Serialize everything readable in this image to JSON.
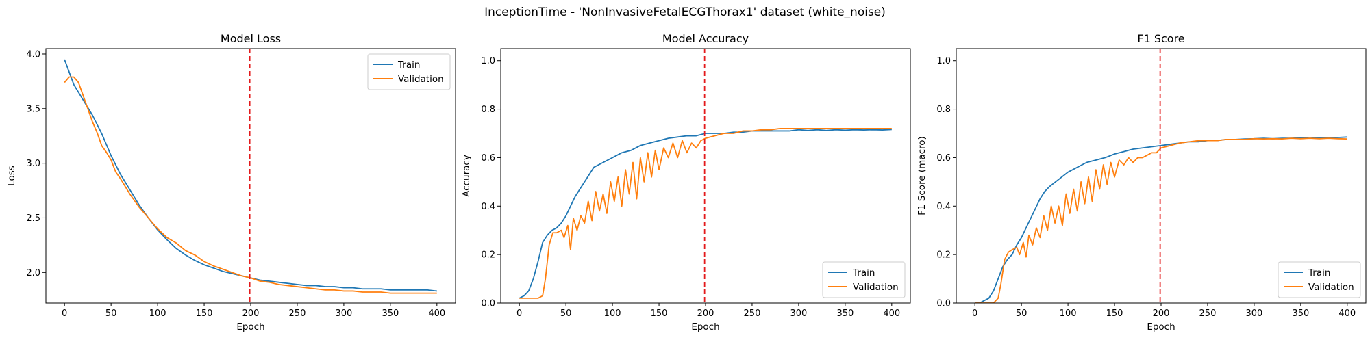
{
  "figure": {
    "title": "InceptionTime - 'NonInvasiveFetalECGThorax1' dataset (white_noise)"
  },
  "colors": {
    "train": "#1f77b4",
    "validation": "#ff7f0e",
    "marker_line": "#e31a1c"
  },
  "chart_data": [
    {
      "type": "line",
      "title": "Model Loss",
      "xlabel": "Epoch",
      "ylabel": "Loss",
      "xlim": [
        -20,
        420
      ],
      "ylim": [
        1.72,
        4.05
      ],
      "xticks": [
        0,
        50,
        100,
        150,
        200,
        250,
        300,
        350,
        400
      ],
      "yticks": [
        2.0,
        2.5,
        3.0,
        3.5,
        4.0
      ],
      "ytick_labels": [
        "2.0",
        "2.5",
        "3.0",
        "3.5",
        "4.0"
      ],
      "legend": "upper right",
      "vline_x": 199,
      "series": [
        {
          "name": "Train",
          "color": "train",
          "x": [
            0,
            10,
            20,
            30,
            40,
            50,
            60,
            70,
            80,
            90,
            100,
            110,
            120,
            130,
            140,
            150,
            160,
            170,
            180,
            190,
            200,
            210,
            220,
            230,
            240,
            250,
            260,
            270,
            280,
            290,
            300,
            310,
            320,
            330,
            340,
            350,
            360,
            370,
            380,
            390,
            400
          ],
          "y": [
            3.95,
            3.72,
            3.58,
            3.44,
            3.27,
            3.07,
            2.9,
            2.76,
            2.62,
            2.5,
            2.39,
            2.3,
            2.22,
            2.16,
            2.11,
            2.07,
            2.04,
            2.01,
            1.99,
            1.97,
            1.95,
            1.93,
            1.92,
            1.91,
            1.9,
            1.89,
            1.88,
            1.88,
            1.87,
            1.87,
            1.86,
            1.86,
            1.85,
            1.85,
            1.85,
            1.84,
            1.84,
            1.84,
            1.84,
            1.84,
            1.83
          ]
        },
        {
          "name": "Validation",
          "color": "validation",
          "x": [
            0,
            5,
            10,
            15,
            20,
            25,
            30,
            35,
            40,
            45,
            50,
            55,
            60,
            70,
            80,
            90,
            100,
            110,
            120,
            130,
            140,
            150,
            160,
            170,
            180,
            190,
            200,
            210,
            220,
            230,
            240,
            250,
            260,
            270,
            280,
            290,
            300,
            310,
            320,
            330,
            340,
            350,
            360,
            370,
            380,
            390,
            400
          ],
          "y": [
            3.74,
            3.79,
            3.79,
            3.74,
            3.62,
            3.5,
            3.38,
            3.28,
            3.16,
            3.1,
            3.03,
            2.92,
            2.86,
            2.72,
            2.6,
            2.5,
            2.4,
            2.32,
            2.27,
            2.2,
            2.16,
            2.1,
            2.06,
            2.03,
            2.0,
            1.97,
            1.95,
            1.92,
            1.91,
            1.89,
            1.88,
            1.87,
            1.86,
            1.85,
            1.84,
            1.84,
            1.83,
            1.83,
            1.82,
            1.82,
            1.82,
            1.81,
            1.81,
            1.81,
            1.81,
            1.81,
            1.81
          ]
        }
      ]
    },
    {
      "type": "line",
      "title": "Model Accuracy",
      "xlabel": "Epoch",
      "ylabel": "Accuracy",
      "xlim": [
        -20,
        420
      ],
      "ylim": [
        0.0,
        1.05
      ],
      "xticks": [
        0,
        50,
        100,
        150,
        200,
        250,
        300,
        350,
        400
      ],
      "yticks": [
        0.0,
        0.2,
        0.4,
        0.6,
        0.8,
        1.0
      ],
      "ytick_labels": [
        "0.0",
        "0.2",
        "0.4",
        "0.6",
        "0.8",
        "1.0"
      ],
      "legend": "lower right",
      "vline_x": 199,
      "series": [
        {
          "name": "Train",
          "color": "train",
          "x": [
            0,
            5,
            10,
            15,
            20,
            25,
            30,
            35,
            40,
            45,
            50,
            55,
            60,
            65,
            70,
            75,
            80,
            90,
            100,
            110,
            120,
            130,
            140,
            150,
            160,
            170,
            180,
            190,
            200,
            210,
            220,
            230,
            240,
            250,
            260,
            270,
            280,
            290,
            300,
            310,
            320,
            330,
            340,
            350,
            360,
            370,
            380,
            390,
            400
          ],
          "y": [
            0.02,
            0.03,
            0.05,
            0.1,
            0.17,
            0.25,
            0.28,
            0.3,
            0.31,
            0.33,
            0.36,
            0.4,
            0.44,
            0.47,
            0.5,
            0.53,
            0.56,
            0.58,
            0.6,
            0.62,
            0.63,
            0.65,
            0.66,
            0.67,
            0.68,
            0.685,
            0.69,
            0.69,
            0.7,
            0.7,
            0.7,
            0.705,
            0.705,
            0.71,
            0.71,
            0.71,
            0.71,
            0.71,
            0.715,
            0.712,
            0.715,
            0.712,
            0.715,
            0.713,
            0.715,
            0.714,
            0.715,
            0.714,
            0.716
          ]
        },
        {
          "name": "Validation",
          "color": "validation",
          "x": [
            0,
            10,
            20,
            25,
            28,
            32,
            36,
            40,
            45,
            48,
            52,
            55,
            58,
            62,
            66,
            70,
            74,
            78,
            82,
            86,
            90,
            94,
            98,
            102,
            106,
            110,
            114,
            118,
            122,
            126,
            130,
            134,
            138,
            142,
            146,
            150,
            155,
            160,
            165,
            170,
            175,
            180,
            185,
            190,
            195,
            200,
            210,
            220,
            230,
            240,
            250,
            260,
            270,
            280,
            290,
            300,
            310,
            320,
            330,
            340,
            350,
            360,
            370,
            380,
            390,
            400
          ],
          "y": [
            0.02,
            0.02,
            0.02,
            0.03,
            0.1,
            0.24,
            0.29,
            0.29,
            0.3,
            0.27,
            0.32,
            0.22,
            0.35,
            0.3,
            0.36,
            0.33,
            0.42,
            0.34,
            0.46,
            0.38,
            0.45,
            0.37,
            0.5,
            0.42,
            0.52,
            0.4,
            0.55,
            0.45,
            0.58,
            0.43,
            0.6,
            0.5,
            0.62,
            0.52,
            0.63,
            0.55,
            0.64,
            0.6,
            0.66,
            0.6,
            0.67,
            0.62,
            0.66,
            0.64,
            0.67,
            0.68,
            0.69,
            0.7,
            0.7,
            0.71,
            0.71,
            0.715,
            0.715,
            0.72,
            0.72,
            0.72,
            0.72,
            0.72,
            0.72,
            0.72,
            0.72,
            0.72,
            0.72,
            0.72,
            0.72,
            0.72
          ]
        }
      ]
    },
    {
      "type": "line",
      "title": "F1 Score",
      "xlabel": "Epoch",
      "ylabel": "F1 Score (macro)",
      "xlim": [
        -20,
        420
      ],
      "ylim": [
        0.0,
        1.05
      ],
      "xticks": [
        0,
        50,
        100,
        150,
        200,
        250,
        300,
        350,
        400
      ],
      "yticks": [
        0.0,
        0.2,
        0.4,
        0.6,
        0.8,
        1.0
      ],
      "ytick_labels": [
        "0.0",
        "0.2",
        "0.4",
        "0.6",
        "0.8",
        "1.0"
      ],
      "legend": "lower right",
      "vline_x": 199,
      "series": [
        {
          "name": "Train",
          "color": "train",
          "x": [
            0,
            5,
            10,
            15,
            20,
            25,
            30,
            35,
            40,
            45,
            50,
            55,
            60,
            65,
            70,
            75,
            80,
            90,
            100,
            110,
            120,
            130,
            140,
            150,
            160,
            170,
            180,
            190,
            200,
            210,
            220,
            230,
            240,
            250,
            260,
            270,
            280,
            290,
            300,
            310,
            320,
            330,
            340,
            350,
            360,
            370,
            380,
            390,
            400
          ],
          "y": [
            0.0,
            0.0,
            0.01,
            0.02,
            0.05,
            0.1,
            0.15,
            0.18,
            0.2,
            0.24,
            0.27,
            0.31,
            0.35,
            0.39,
            0.43,
            0.46,
            0.48,
            0.51,
            0.54,
            0.56,
            0.58,
            0.59,
            0.6,
            0.615,
            0.625,
            0.635,
            0.64,
            0.645,
            0.65,
            0.655,
            0.66,
            0.665,
            0.665,
            0.67,
            0.67,
            0.675,
            0.675,
            0.677,
            0.678,
            0.68,
            0.678,
            0.68,
            0.68,
            0.682,
            0.68,
            0.683,
            0.682,
            0.683,
            0.685
          ]
        },
        {
          "name": "Validation",
          "color": "validation",
          "x": [
            0,
            10,
            20,
            25,
            28,
            32,
            36,
            40,
            45,
            48,
            52,
            55,
            58,
            62,
            66,
            70,
            74,
            78,
            82,
            86,
            90,
            94,
            98,
            102,
            106,
            110,
            114,
            118,
            122,
            126,
            130,
            134,
            138,
            142,
            146,
            150,
            155,
            160,
            165,
            170,
            175,
            180,
            185,
            190,
            195,
            200,
            210,
            220,
            230,
            240,
            250,
            260,
            270,
            280,
            290,
            300,
            310,
            320,
            330,
            340,
            350,
            360,
            370,
            380,
            390,
            400
          ],
          "y": [
            0.0,
            0.0,
            0.0,
            0.02,
            0.08,
            0.18,
            0.21,
            0.22,
            0.23,
            0.2,
            0.25,
            0.19,
            0.28,
            0.24,
            0.31,
            0.27,
            0.36,
            0.3,
            0.4,
            0.33,
            0.4,
            0.32,
            0.45,
            0.37,
            0.47,
            0.38,
            0.5,
            0.41,
            0.52,
            0.42,
            0.55,
            0.47,
            0.57,
            0.49,
            0.58,
            0.52,
            0.59,
            0.57,
            0.6,
            0.58,
            0.6,
            0.6,
            0.61,
            0.62,
            0.62,
            0.64,
            0.65,
            0.66,
            0.665,
            0.67,
            0.67,
            0.67,
            0.675,
            0.675,
            0.675,
            0.678,
            0.677,
            0.678,
            0.677,
            0.68,
            0.678,
            0.68,
            0.678,
            0.68,
            0.678,
            0.677
          ]
        }
      ]
    }
  ]
}
